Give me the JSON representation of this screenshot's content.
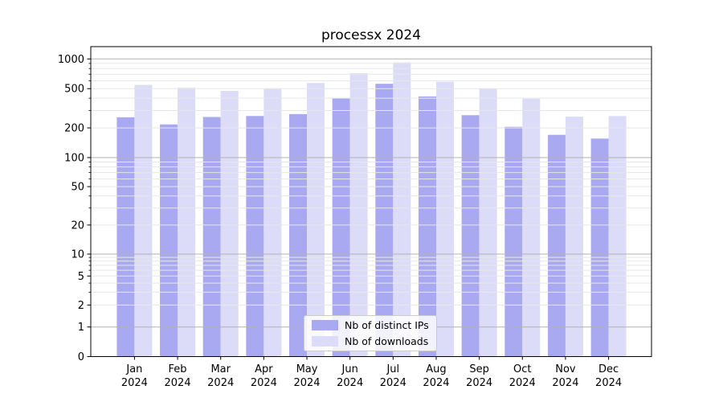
{
  "chart_data": {
    "type": "bar",
    "title": "processx 2024",
    "categories": [
      "Jan",
      "Feb",
      "Mar",
      "Apr",
      "May",
      "Jun",
      "Jul",
      "Aug",
      "Sep",
      "Oct",
      "Nov",
      "Dec"
    ],
    "category_year": "2024",
    "series": [
      {
        "name": "Nb of distinct IPs",
        "color": "#a9a9f1",
        "values": [
          256,
          217,
          258,
          264,
          276,
          403,
          560,
          417,
          269,
          205,
          170,
          156
        ]
      },
      {
        "name": "Nb of downloads",
        "color": "#dcdcf8",
        "values": [
          545,
          510,
          475,
          500,
          570,
          717,
          920,
          587,
          503,
          396,
          260,
          264
        ]
      }
    ],
    "xlabel": "",
    "ylabel": "",
    "yscale": "symlog",
    "ylim": [
      0,
      1330
    ],
    "ytick_labels": [
      0,
      1,
      2,
      5,
      10,
      20,
      50,
      100,
      200,
      500,
      1000
    ],
    "grid": true,
    "grid_minor": true,
    "legend_position": "lower-center",
    "colors": {
      "major_grid": "#b2b2b2",
      "minor_grid": "#e7e7e7",
      "axis": "#000000",
      "text": "#000000"
    }
  }
}
